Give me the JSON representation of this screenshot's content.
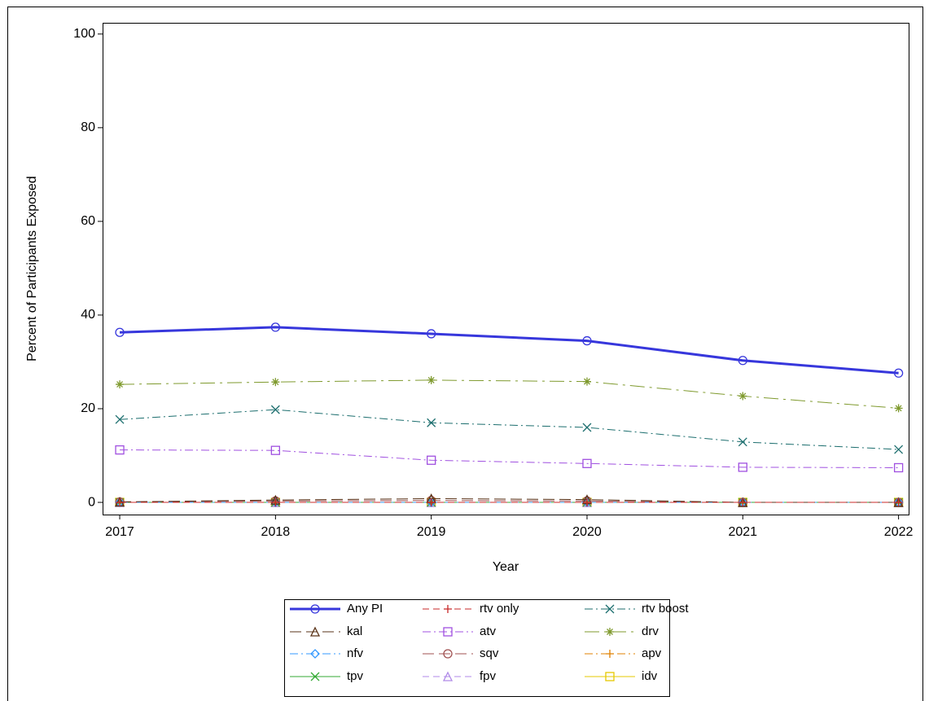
{
  "chart_data": {
    "type": "line",
    "x_label": "Year",
    "y_label": "Percent of Participants Exposed",
    "x": [
      2017,
      2018,
      2019,
      2020,
      2021,
      2022
    ],
    "xlim": [
      2016.89,
      2022.07
    ],
    "xticks": [
      2017,
      2018,
      2019,
      2020,
      2021,
      2022
    ],
    "ylim": [
      -2.6,
      102.4
    ],
    "yticks": [
      0,
      20,
      40,
      60,
      80,
      100
    ],
    "grid": false,
    "legend": "bottom",
    "series": [
      {
        "name": "Any PI",
        "color": "#3737dc",
        "marker": "circle",
        "dash": "solid",
        "width": 3,
        "values": [
          36.3,
          37.4,
          36.0,
          34.5,
          30.3,
          27.6
        ]
      },
      {
        "name": "rtv only",
        "color": "#c82828",
        "marker": "plus",
        "dash": "dash",
        "width": 1,
        "values": [
          0,
          0,
          0,
          0,
          0,
          0
        ]
      },
      {
        "name": "rtv boost",
        "color": "#1c6e6e",
        "marker": "x",
        "dash": "dashdot",
        "width": 1,
        "values": [
          17.7,
          19.8,
          17.0,
          16.0,
          12.9,
          11.3
        ]
      },
      {
        "name": "kal",
        "color": "#5a3318",
        "marker": "triangle",
        "dash": "longdash",
        "width": 1,
        "values": [
          0.1,
          0.5,
          0.8,
          0.6,
          0,
          0
        ]
      },
      {
        "name": "atv",
        "color": "#a050e0",
        "marker": "square",
        "dash": "dashdot",
        "width": 1,
        "values": [
          11.2,
          11.1,
          9.0,
          8.3,
          7.5,
          7.4
        ]
      },
      {
        "name": "drv",
        "color": "#7f9a2e",
        "marker": "star",
        "dash": "longdashdot",
        "width": 1,
        "values": [
          25.2,
          25.7,
          26.1,
          25.8,
          22.7,
          20.1
        ]
      },
      {
        "name": "nfv",
        "color": "#3399ff",
        "marker": "diamond",
        "dash": "dashdot",
        "width": 1,
        "values": [
          0,
          0,
          0,
          0,
          0,
          0
        ]
      },
      {
        "name": "sqv",
        "color": "#a05050",
        "marker": "circle",
        "dash": "longdash",
        "width": 1,
        "values": [
          0.1,
          0.3,
          0.4,
          0.3,
          0,
          0
        ]
      },
      {
        "name": "apv",
        "color": "#e08000",
        "marker": "plus",
        "dash": "dashdot",
        "width": 1,
        "values": [
          0,
          0,
          0,
          0,
          0,
          0
        ]
      },
      {
        "name": "tpv",
        "color": "#33aa33",
        "marker": "x",
        "dash": "solid",
        "width": 1,
        "values": [
          0,
          0,
          0,
          0,
          0,
          0
        ]
      },
      {
        "name": "fpv",
        "color": "#b08ae8",
        "marker": "triangle",
        "dash": "dash",
        "width": 1,
        "values": [
          0,
          0,
          0,
          0,
          0,
          0
        ]
      },
      {
        "name": "idv",
        "color": "#e6c800",
        "marker": "square",
        "dash": "solid",
        "width": 1,
        "values": [
          0,
          0,
          0,
          0,
          0,
          0
        ]
      }
    ]
  }
}
